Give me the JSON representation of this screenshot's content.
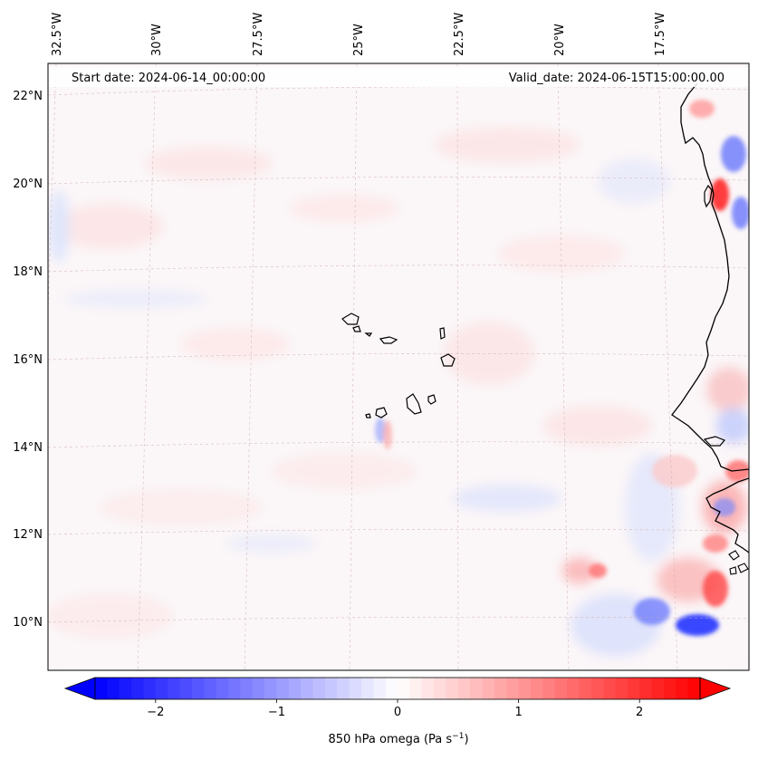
{
  "header": {
    "start_date": "Start date: 2024-06-14_00:00:00",
    "valid_date": "Valid_date: 2024-06-15T15:00:00.00"
  },
  "map": {
    "projection": "lambert-conformal",
    "lon_labels": [
      "32.5°W",
      "30°W",
      "27.5°W",
      "25°W",
      "22.5°W",
      "20°W",
      "17.5°W"
    ],
    "lat_labels": [
      "22°N",
      "20°N",
      "18°N",
      "16°N",
      "14°N",
      "12°N",
      "10°N"
    ],
    "gridlines": true
  },
  "colorbar": {
    "label": "850 hPa omega (Pa s",
    "label_exp": "−1",
    "label_close": ")",
    "ticks": [
      "−2",
      "−1",
      "0",
      "1",
      "2"
    ],
    "tick_values": [
      -2,
      -1,
      0,
      1,
      2
    ],
    "range": [
      -2.5,
      2.5
    ],
    "colormap": "bwr",
    "extend": "both"
  },
  "colors": {
    "negative": "#0000ff",
    "neutral": "#ffffff",
    "positive": "#ff0000",
    "coastline": "#000000"
  }
}
